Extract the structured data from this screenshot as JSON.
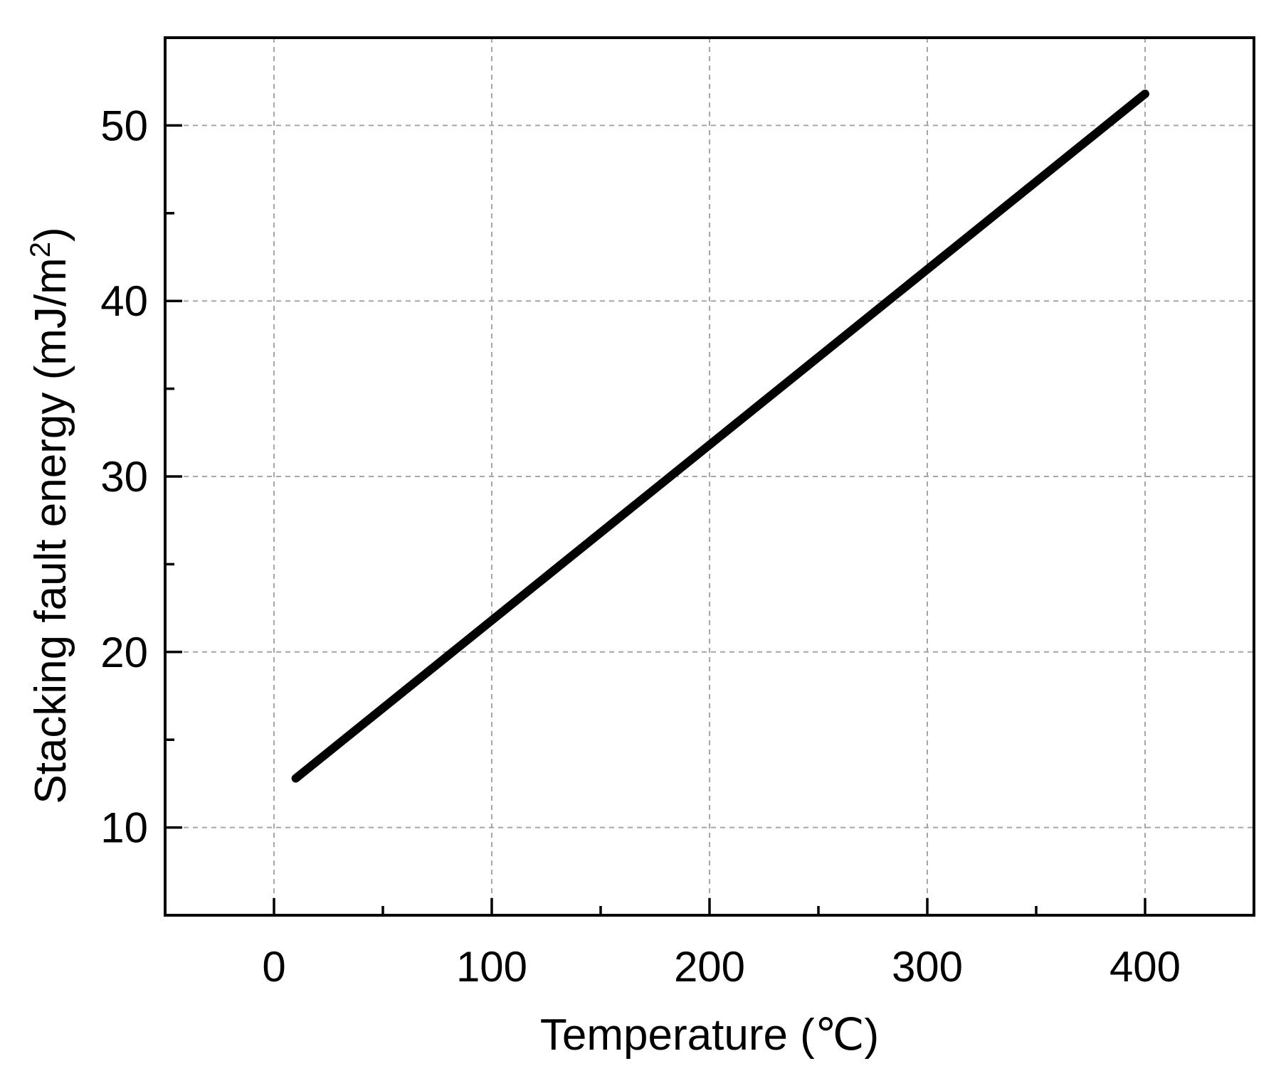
{
  "chart_data": {
    "type": "line",
    "title": "",
    "xlabel": "Temperature (℃)",
    "ylabel_main": "Stacking fault energy (mJ/m",
    "ylabel_sup": "2",
    "ylabel_close": ")",
    "xlim": [
      -50,
      450
    ],
    "ylim": [
      5,
      55
    ],
    "x_ticks": [
      0,
      100,
      200,
      300,
      400
    ],
    "x_minor_ticks": [
      50,
      150,
      250,
      350
    ],
    "y_ticks": [
      10,
      20,
      30,
      40,
      50
    ],
    "y_minor_ticks": [
      15,
      25,
      35,
      45
    ],
    "grid": true,
    "series": [
      {
        "x": [
          10,
          400
        ],
        "y": [
          12.8,
          51.8
        ],
        "color": "#000000"
      }
    ]
  }
}
